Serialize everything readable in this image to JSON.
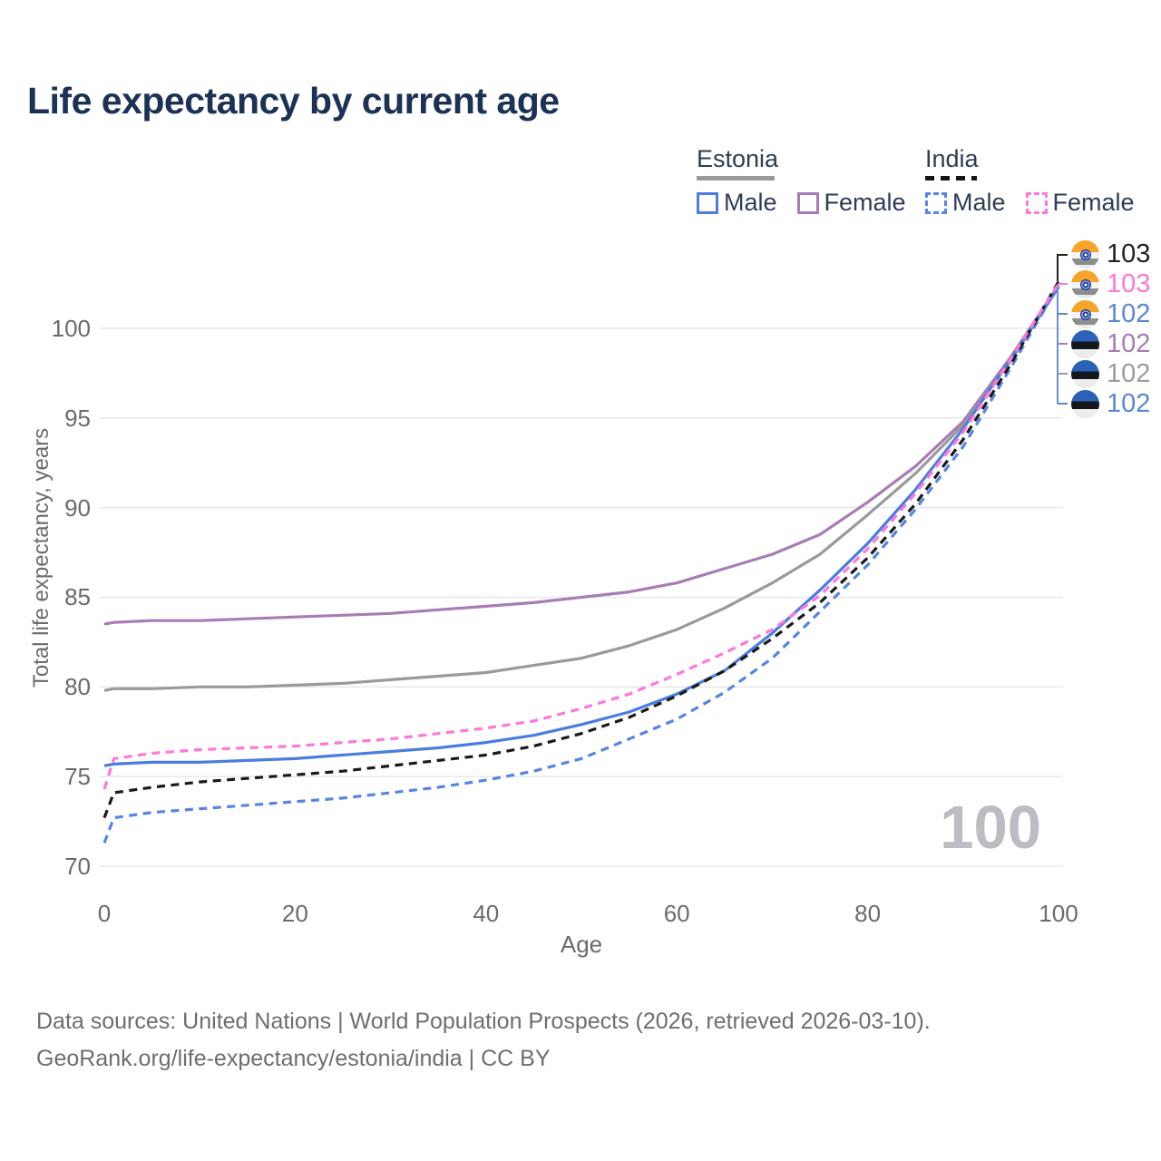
{
  "title": "Life expectancy by current age",
  "legend": {
    "groups": [
      {
        "label": "Estonia",
        "underline_style": "solid",
        "underline_color": "#9a9a9a",
        "items": [
          {
            "label": "Male",
            "color": "#4a7de0",
            "style": "solid"
          },
          {
            "label": "Female",
            "color": "#a87cb4",
            "style": "solid"
          }
        ]
      },
      {
        "label": "India",
        "underline_style": "dashed",
        "underline_color": "#151515",
        "items": [
          {
            "label": "Male",
            "color": "#5585e5",
            "style": "dashed"
          },
          {
            "label": "Female",
            "color": "#ff77d8",
            "style": "dashed"
          }
        ]
      }
    ]
  },
  "end_labels": [
    {
      "flag": "india",
      "value": "103",
      "color": "#222222"
    },
    {
      "flag": "india",
      "value": "103",
      "color": "#ff77d8"
    },
    {
      "flag": "india",
      "value": "102",
      "color": "#5b87d8"
    },
    {
      "flag": "estonia",
      "value": "102",
      "color": "#a87cb4"
    },
    {
      "flag": "estonia",
      "value": "102",
      "color": "#9c9c9c"
    },
    {
      "flag": "estonia",
      "value": "102",
      "color": "#5b87d8"
    }
  ],
  "watermark": "100",
  "axes": {
    "y_title": "Total life expectancy, years",
    "x_title": "Age"
  },
  "footer": {
    "line1": "Data sources: United Nations | World Population Prospects (2026, retrieved 2026-03-10).",
    "line2": "GeoRank.org/life-expectancy/estonia/india | CC BY"
  },
  "chart_data": {
    "type": "line",
    "title": "Life expectancy by current age",
    "xlabel": "Age",
    "ylabel": "Total life expectancy, years",
    "xlim": [
      0,
      100
    ],
    "ylim": [
      70,
      103.6
    ],
    "x_ticks": [
      0,
      20,
      40,
      60,
      80,
      100
    ],
    "y_ticks": [
      70,
      75,
      80,
      85,
      90,
      95,
      100
    ],
    "grid": "horizontal",
    "grid_color": "#e8e8ea",
    "x": [
      0,
      1,
      5,
      10,
      15,
      20,
      25,
      30,
      35,
      40,
      45,
      50,
      55,
      60,
      65,
      70,
      75,
      80,
      85,
      90,
      95,
      100
    ],
    "series": [
      {
        "name": "Estonia Female",
        "color": "#a87cb4",
        "dash": false,
        "values": [
          83.5,
          83.6,
          83.7,
          83.7,
          83.8,
          83.9,
          84.0,
          84.1,
          84.3,
          84.5,
          84.7,
          85.0,
          85.3,
          85.8,
          86.6,
          87.4,
          88.5,
          90.3,
          92.3,
          94.8,
          98.4,
          102.4
        ]
      },
      {
        "name": "Estonia Both sexes",
        "color": "#9a9a9a",
        "dash": false,
        "values": [
          79.8,
          79.9,
          79.9,
          80.0,
          80.0,
          80.1,
          80.2,
          80.4,
          80.6,
          80.8,
          81.2,
          81.6,
          82.3,
          83.2,
          84.4,
          85.8,
          87.4,
          89.6,
          91.9,
          94.6,
          98.2,
          102.3
        ]
      },
      {
        "name": "Estonia Male",
        "color": "#4a7de0",
        "dash": false,
        "values": [
          75.6,
          75.7,
          75.8,
          75.8,
          75.9,
          76.0,
          76.2,
          76.4,
          76.6,
          76.9,
          77.3,
          77.9,
          78.6,
          79.6,
          80.9,
          83.0,
          85.4,
          88.0,
          91.0,
          94.4,
          98.3,
          102.3
        ]
      },
      {
        "name": "India Male",
        "color": "#5585e5",
        "dash": true,
        "values": [
          71.3,
          72.7,
          73.0,
          73.2,
          73.4,
          73.6,
          73.8,
          74.1,
          74.4,
          74.8,
          75.3,
          76.0,
          77.1,
          78.2,
          79.7,
          81.6,
          84.2,
          86.8,
          89.9,
          93.4,
          97.8,
          102.4
        ]
      },
      {
        "name": "India Both sexes",
        "color": "#1a1a1a",
        "dash": true,
        "values": [
          72.7,
          74.1,
          74.4,
          74.7,
          74.9,
          75.1,
          75.3,
          75.6,
          75.9,
          76.2,
          76.7,
          77.4,
          78.3,
          79.5,
          80.9,
          82.7,
          84.7,
          87.2,
          90.2,
          93.8,
          98.0,
          102.6
        ]
      },
      {
        "name": "India Female",
        "color": "#ff77d8",
        "dash": true,
        "values": [
          74.3,
          76.0,
          76.3,
          76.5,
          76.6,
          76.7,
          76.9,
          77.1,
          77.4,
          77.7,
          78.1,
          78.8,
          79.6,
          80.7,
          81.9,
          83.2,
          85.1,
          87.7,
          90.8,
          94.2,
          98.3,
          102.5
        ]
      }
    ],
    "end_value_labels": [
      103,
      103,
      102,
      102,
      102,
      102
    ]
  }
}
